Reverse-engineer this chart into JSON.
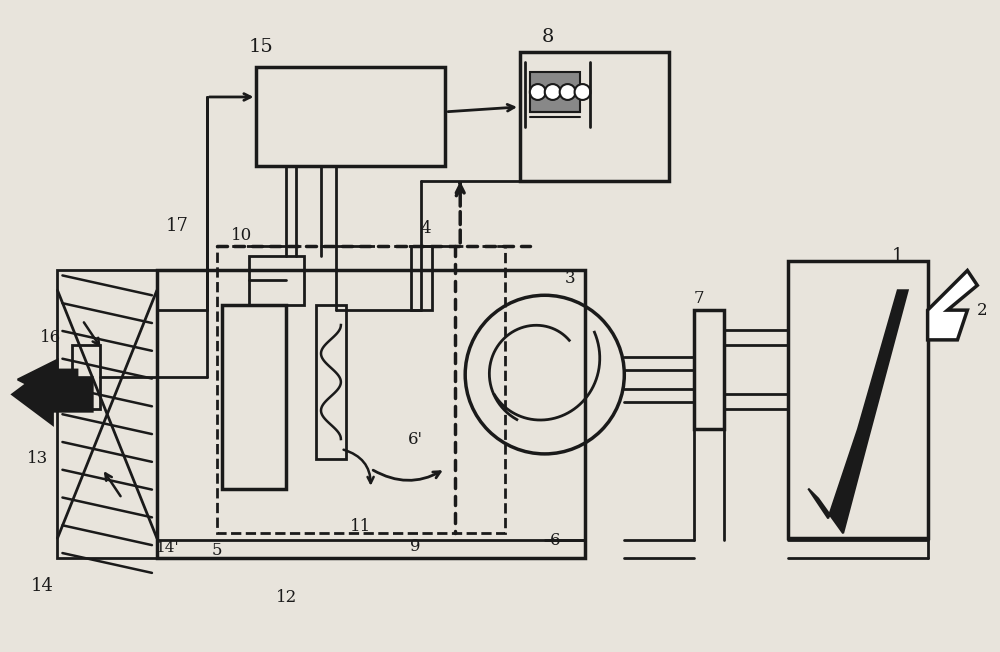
{
  "bg_color": "#e8e4dc",
  "line_color": "#1a1a1a",
  "lw": 2.0
}
